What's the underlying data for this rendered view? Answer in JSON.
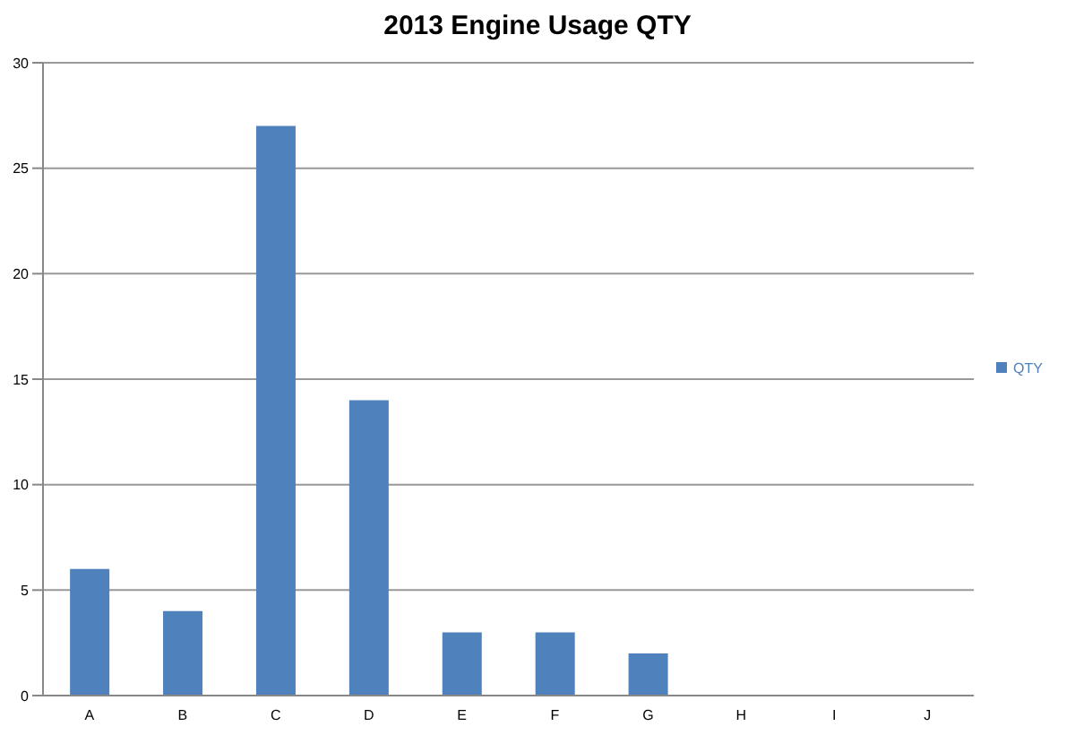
{
  "chart_data": {
    "type": "bar",
    "title": "2013 Engine Usage QTY",
    "categories": [
      "A",
      "B",
      "C",
      "D",
      "E",
      "F",
      "G",
      "H",
      "I",
      "J"
    ],
    "series": [
      {
        "name": "QTY",
        "color": "#4f81bd",
        "values": [
          6,
          4,
          27,
          14,
          3,
          3,
          2,
          0,
          0,
          0
        ]
      }
    ],
    "ylim": [
      0,
      30
    ],
    "yticks": [
      0,
      5,
      10,
      15,
      20,
      25,
      30
    ],
    "grid": "y",
    "legend": "right"
  }
}
